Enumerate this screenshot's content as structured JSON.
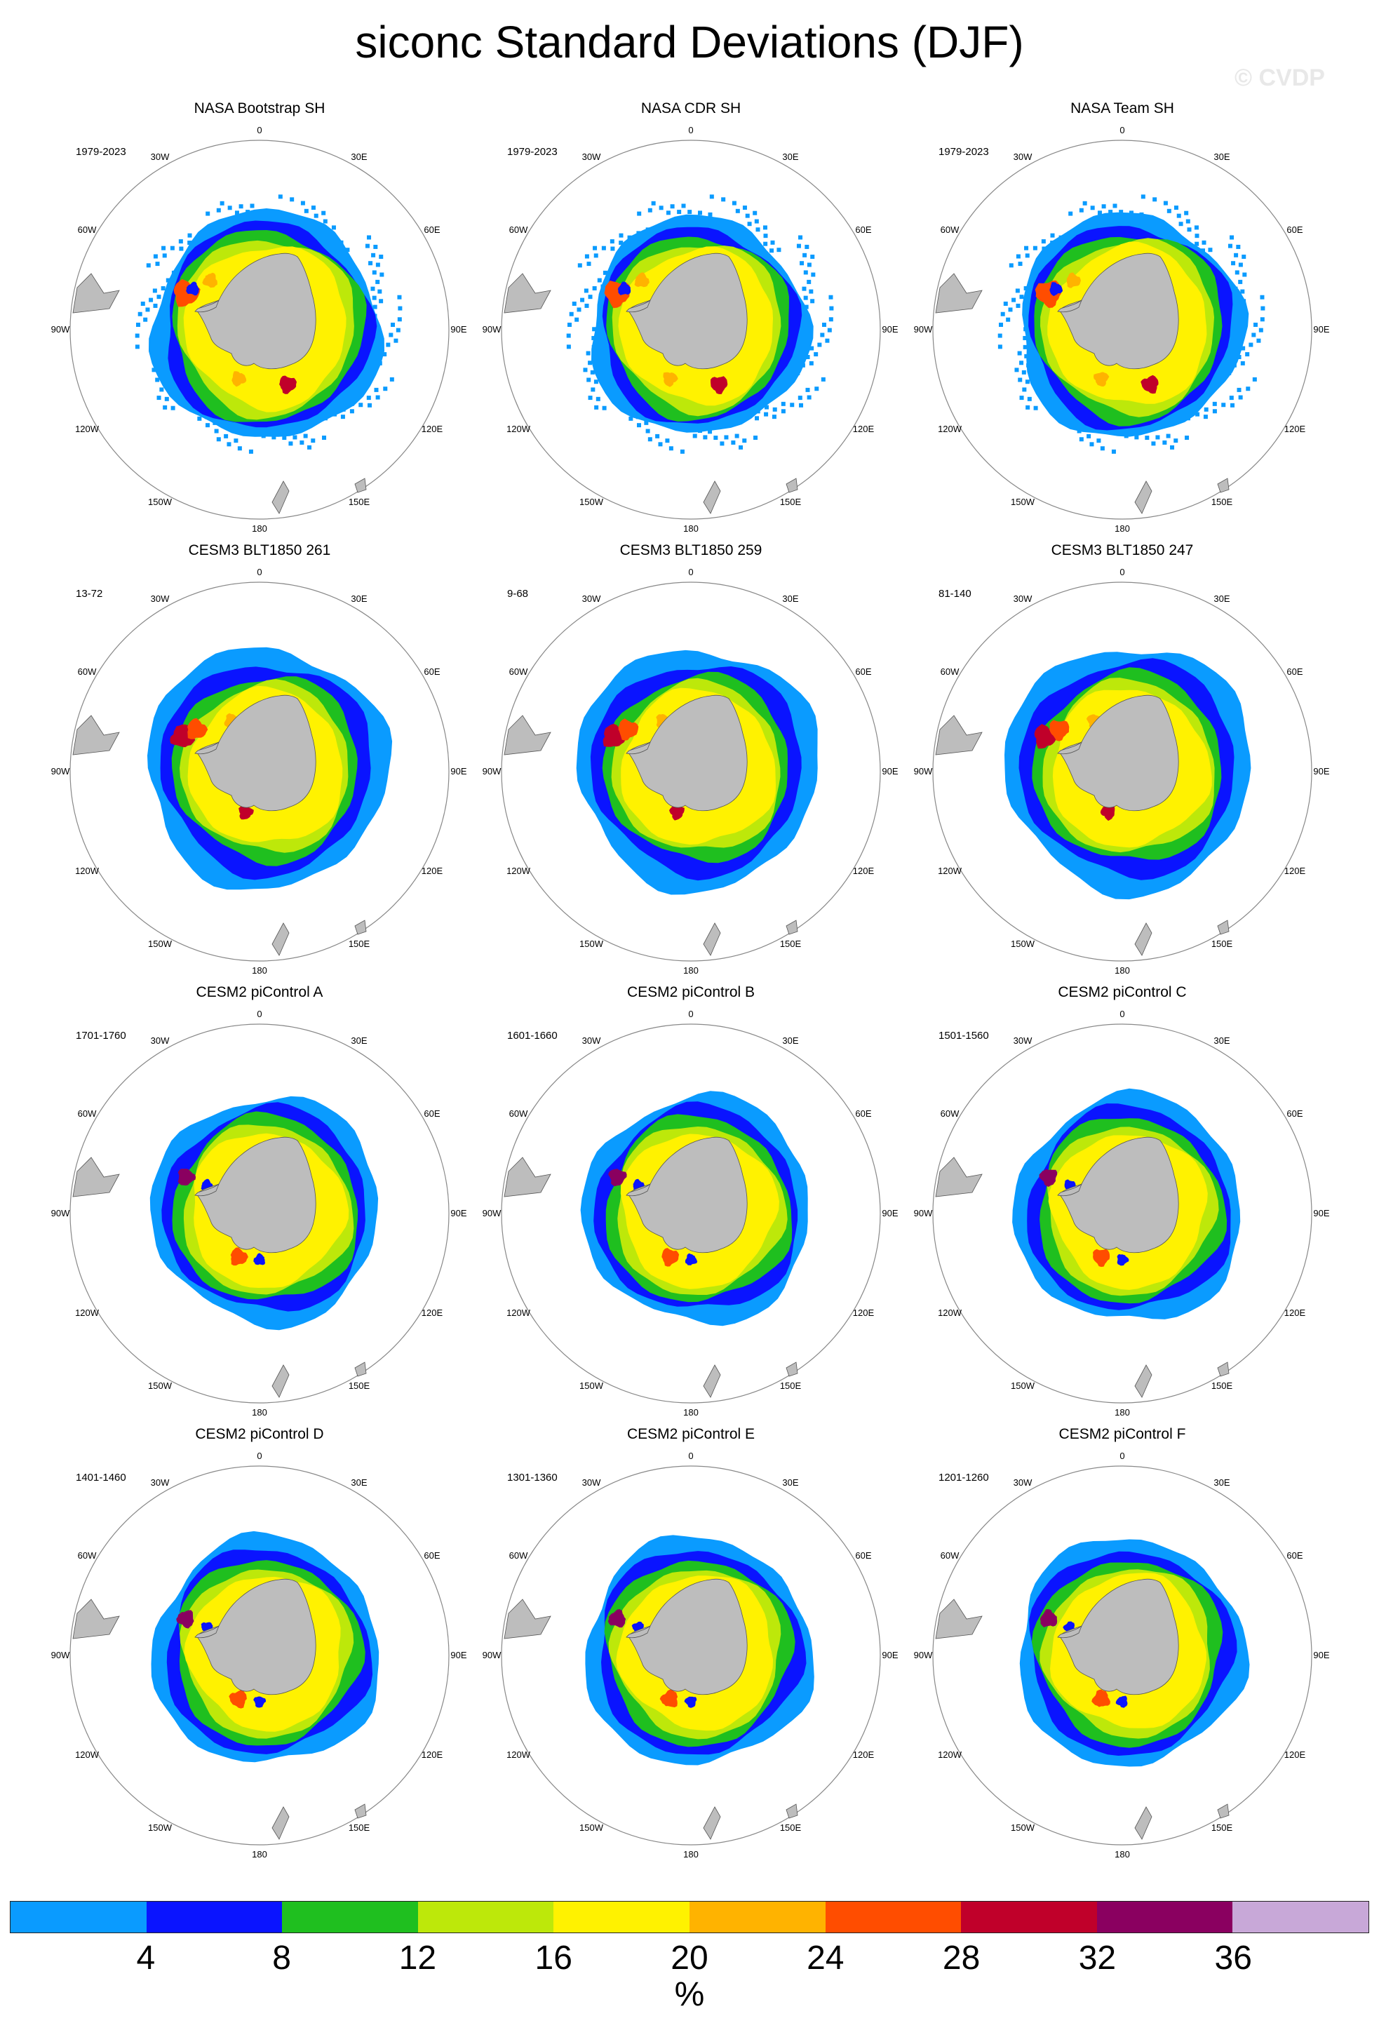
{
  "title": "siconc Standard Deviations (DJF)",
  "watermark": "© CVDP",
  "longitude_labels": [
    "0",
    "30E",
    "60E",
    "90E",
    "120E",
    "150E",
    "180",
    "150W",
    "120W",
    "90W",
    "60W",
    "30W"
  ],
  "panels": [
    {
      "title": "NASA Bootstrap SH",
      "period": "1979-2023",
      "style": "obs",
      "ext": 1.05
    },
    {
      "title": "NASA CDR SH",
      "period": "1979-2023",
      "style": "obs",
      "ext": 1.0
    },
    {
      "title": "NASA Team SH",
      "period": "1979-2023",
      "style": "obs",
      "ext": 1.03
    },
    {
      "title": "CESM3 BLT1850 261",
      "period": "13-72",
      "style": "cesm3",
      "ext": 1.0
    },
    {
      "title": "CESM3 BLT1850 259",
      "period": "9-68",
      "style": "cesm3",
      "ext": 1.0
    },
    {
      "title": "CESM3 BLT1850 247",
      "period": "81-140",
      "style": "cesm3",
      "ext": 1.02
    },
    {
      "title": "CESM2 piControl A",
      "period": "1701-1760",
      "style": "cesm2",
      "ext": 1.0
    },
    {
      "title": "CESM2 piControl B",
      "period": "1601-1660",
      "style": "cesm2",
      "ext": 1.0
    },
    {
      "title": "CESM2 piControl C",
      "period": "1501-1560",
      "style": "cesm2",
      "ext": 1.0
    },
    {
      "title": "CESM2 piControl D",
      "period": "1401-1460",
      "style": "cesm2",
      "ext": 1.0
    },
    {
      "title": "CESM2 piControl E",
      "period": "1301-1360",
      "style": "cesm2",
      "ext": 1.0
    },
    {
      "title": "CESM2 piControl F",
      "period": "1201-1260",
      "style": "cesm2",
      "ext": 1.0
    }
  ],
  "colorbar": {
    "colors": [
      "#0a9bff",
      "#0a14ff",
      "#1fbf1f",
      "#bde80a",
      "#fff200",
      "#ffb300",
      "#ff4d00",
      "#c0002a",
      "#8a0060",
      "#c8a8d8"
    ],
    "labels": [
      "4",
      "8",
      "12",
      "16",
      "20",
      "24",
      "28",
      "32",
      "36"
    ],
    "units": "%"
  }
}
